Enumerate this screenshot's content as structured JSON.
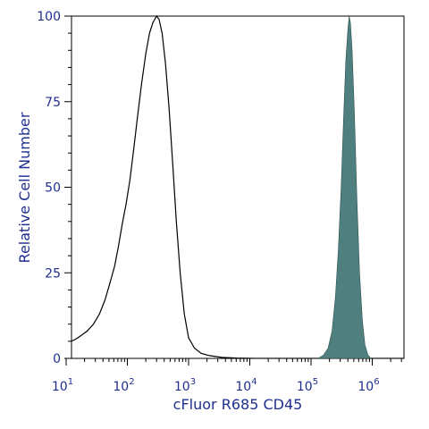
{
  "chart_data": {
    "type": "area",
    "xlabel": "cFluor R685 CD45",
    "ylabel": "Relative Cell Number",
    "x_scale": "log10",
    "xlim": [
      10,
      5000000
    ],
    "ylim": [
      0,
      100
    ],
    "y_ticks": [
      0,
      25,
      50,
      75,
      100
    ],
    "x_ticks": [
      {
        "value": 10,
        "base": "10",
        "exp": "1"
      },
      {
        "value": 100,
        "base": "10",
        "exp": "2"
      },
      {
        "value": 1000,
        "base": "10",
        "exp": "3"
      },
      {
        "value": 10000,
        "base": "10",
        "exp": "4"
      },
      {
        "value": 100000,
        "base": "10",
        "exp": "5"
      },
      {
        "value": 1000000,
        "base": "10",
        "exp": "6"
      }
    ],
    "grid": false,
    "series": [
      {
        "style": "outline",
        "color": "#000000",
        "points": [
          [
            10.5,
            6
          ],
          [
            12,
            5
          ],
          [
            14,
            5.5
          ],
          [
            17,
            6.5
          ],
          [
            22,
            8
          ],
          [
            28,
            10
          ],
          [
            35,
            13
          ],
          [
            43,
            17
          ],
          [
            52,
            22
          ],
          [
            62,
            27
          ],
          [
            72,
            33
          ],
          [
            82,
            39
          ],
          [
            95,
            45
          ],
          [
            110,
            52
          ],
          [
            125,
            60
          ],
          [
            145,
            70
          ],
          [
            170,
            80
          ],
          [
            200,
            89
          ],
          [
            230,
            95
          ],
          [
            260,
            98
          ],
          [
            300,
            100
          ],
          [
            330,
            99
          ],
          [
            370,
            95
          ],
          [
            420,
            86
          ],
          [
            480,
            73
          ],
          [
            550,
            57
          ],
          [
            630,
            40
          ],
          [
            730,
            25
          ],
          [
            850,
            13
          ],
          [
            1000,
            6
          ],
          [
            1250,
            3
          ],
          [
            1600,
            1.5
          ],
          [
            2200,
            0.8
          ],
          [
            3500,
            0.3
          ],
          [
            6000,
            0.1
          ],
          [
            12000,
            0
          ],
          [
            100000,
            0
          ],
          [
            4000000,
            0
          ]
        ]
      },
      {
        "style": "filled",
        "color": "#4f7f7e",
        "points": [
          [
            130000,
            0
          ],
          [
            160000,
            1
          ],
          [
            190000,
            3
          ],
          [
            220000,
            8
          ],
          [
            250000,
            18
          ],
          [
            280000,
            32
          ],
          [
            310000,
            50
          ],
          [
            340000,
            70
          ],
          [
            370000,
            87
          ],
          [
            400000,
            96
          ],
          [
            420000,
            100
          ],
          [
            440000,
            98
          ],
          [
            470000,
            90
          ],
          [
            510000,
            72
          ],
          [
            560000,
            47
          ],
          [
            620000,
            25
          ],
          [
            690000,
            11
          ],
          [
            760000,
            4
          ],
          [
            850000,
            1
          ],
          [
            950000,
            0
          ]
        ]
      }
    ]
  }
}
